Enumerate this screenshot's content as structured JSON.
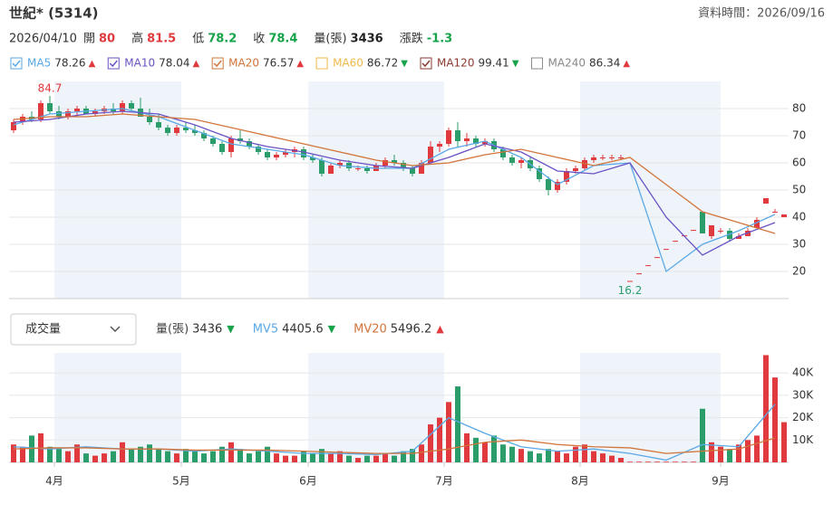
{
  "header": {
    "title": "世紀* (5314)",
    "timestamp": "資料時間：2026/09/16",
    "date": "2026/04/10",
    "quote": [
      {
        "label": "開",
        "value": 80,
        "color": "#e0393e"
      },
      {
        "label": "高",
        "value": 81.5,
        "color": "#e0393e"
      },
      {
        "label": "低",
        "value": 78.2,
        "color": "#16a34a"
      },
      {
        "label": "收",
        "value": 78.4,
        "color": "#16a34a"
      },
      {
        "label": "量(張)",
        "value": 3436,
        "color": "#222"
      },
      {
        "label": "漲跌",
        "value": -1.3,
        "color": "#16a34a"
      }
    ]
  },
  "chart_data": [
    {
      "type": "candlestick",
      "xlim": [
        0,
        86
      ],
      "ylim": [
        10,
        90
      ],
      "yticks": [
        20,
        30,
        40,
        50,
        60,
        70,
        80
      ],
      "grid": true,
      "up_color": "#e0393e",
      "down_color": "#2a9d6b",
      "legend": [
        {
          "name": "MA5",
          "value": 78.26,
          "trend": "▲",
          "color": "#5aa9e6",
          "checked": true
        },
        {
          "name": "MA10",
          "value": 78.04,
          "trend": "▲",
          "color": "#6b52c4",
          "checked": true
        },
        {
          "name": "MA20",
          "value": 76.57,
          "trend": "▲",
          "color": "#d2743a",
          "checked": true
        },
        {
          "name": "MA60",
          "value": 86.72,
          "trend": "▼",
          "color": "#f0b94b",
          "checked": false
        },
        {
          "name": "MA120",
          "value": 99.41,
          "trend": "▼",
          "color": "#8b3a2f",
          "checked": true
        },
        {
          "name": "MA240",
          "value": 86.34,
          "trend": "▲",
          "color": "#888888",
          "checked": false
        }
      ],
      "annotations": [
        {
          "label": "84.7",
          "value": 84.7,
          "color": "#e0393e"
        },
        {
          "label": "16.2",
          "value": 16.2,
          "color": "#2a9d6b"
        }
      ],
      "ohlc": [
        [
          72,
          76,
          71,
          75
        ],
        [
          75,
          78,
          74,
          77
        ],
        [
          77,
          79,
          75,
          76
        ],
        [
          76,
          83,
          75,
          82
        ],
        [
          82,
          84.7,
          78,
          79
        ],
        [
          79,
          81,
          76,
          77
        ],
        [
          77,
          80,
          76,
          79
        ],
        [
          79,
          81,
          77,
          80
        ],
        [
          80,
          81,
          78,
          78
        ],
        [
          78,
          80,
          77,
          79
        ],
        [
          79,
          81,
          78,
          80
        ],
        [
          80,
          82,
          78,
          79
        ],
        [
          79,
          83,
          78,
          82
        ],
        [
          82,
          83,
          79,
          80
        ],
        [
          80,
          84,
          77,
          77
        ],
        [
          77,
          80,
          74,
          75
        ],
        [
          75,
          78,
          72,
          73
        ],
        [
          73,
          74,
          70,
          71
        ],
        [
          71,
          74,
          70,
          73
        ],
        [
          73,
          75,
          71,
          72
        ],
        [
          72,
          74,
          70,
          71
        ],
        [
          71,
          72,
          68,
          69
        ],
        [
          69,
          70,
          66,
          67
        ],
        [
          67,
          68,
          63,
          64
        ],
        [
          64,
          70,
          62,
          69
        ],
        [
          69,
          72,
          67,
          68
        ],
        [
          68,
          69,
          65,
          66
        ],
        [
          66,
          67,
          63,
          64
        ],
        [
          64,
          65,
          61,
          62
        ],
        [
          62,
          64,
          61,
          63
        ],
        [
          63,
          65,
          62,
          64
        ],
        [
          64,
          66,
          62,
          65
        ],
        [
          65,
          66,
          61,
          62
        ],
        [
          62,
          63,
          60,
          61
        ],
        [
          61,
          62,
          55,
          56
        ],
        [
          56,
          60,
          56,
          59
        ],
        [
          59,
          61,
          58,
          60
        ],
        [
          60,
          61,
          57,
          58
        ],
        [
          58,
          59,
          57,
          58
        ],
        [
          58,
          59,
          56,
          57
        ],
        [
          57,
          60,
          57,
          59
        ],
        [
          59,
          62,
          58,
          61
        ],
        [
          61,
          63,
          59,
          60
        ],
        [
          60,
          61,
          57,
          58
        ],
        [
          58,
          59,
          55,
          56
        ],
        [
          56,
          61,
          56,
          60
        ],
        [
          60,
          68,
          60,
          66
        ],
        [
          66,
          68,
          64,
          67
        ],
        [
          67,
          73,
          66,
          72
        ],
        [
          72,
          75,
          66,
          68
        ],
        [
          68,
          71,
          66,
          69
        ],
        [
          69,
          70,
          66,
          67
        ],
        [
          67,
          69,
          66,
          68
        ],
        [
          68,
          69,
          64,
          65
        ],
        [
          65,
          66,
          61,
          62
        ],
        [
          62,
          63,
          59,
          60
        ],
        [
          60,
          62,
          58,
          61
        ],
        [
          61,
          62,
          57,
          58
        ],
        [
          58,
          59,
          53,
          54
        ],
        [
          54,
          55,
          48,
          50
        ],
        [
          50,
          54,
          49,
          53
        ],
        [
          53,
          58,
          52,
          57
        ],
        [
          57,
          59,
          56,
          58
        ],
        [
          58,
          62,
          57,
          61
        ],
        [
          61,
          63,
          60,
          62
        ],
        [
          62,
          63,
          61,
          62
        ],
        [
          62,
          63,
          61,
          62
        ],
        [
          62,
          63,
          61,
          62
        ],
        [
          16.2,
          16.5,
          16.2,
          16.5
        ],
        [
          19,
          19.3,
          19,
          19.3
        ],
        [
          22,
          22.3,
          22,
          22.3
        ],
        [
          25,
          25.3,
          25,
          25.3
        ],
        [
          28,
          28.3,
          28,
          28.3
        ],
        [
          31,
          31.3,
          31,
          31.3
        ],
        [
          33,
          33.3,
          33,
          33.3
        ],
        [
          35,
          35.3,
          35,
          35.3
        ],
        [
          42,
          42,
          34,
          34
        ],
        [
          33,
          37,
          32,
          37
        ],
        [
          35,
          36,
          34,
          35
        ],
        [
          35,
          36,
          31,
          32
        ],
        [
          32,
          34,
          32,
          33
        ],
        [
          33,
          36,
          33,
          35
        ],
        [
          36,
          40,
          36,
          39
        ],
        [
          45,
          47,
          45,
          47
        ],
        [
          42,
          43,
          42,
          42
        ],
        [
          40,
          41,
          40,
          41
        ]
      ],
      "series": [
        {
          "name": "MA5",
          "color": "#5aa9e6",
          "x": [
            0,
            4,
            8,
            12,
            16,
            20,
            24,
            28,
            32,
            36,
            40,
            44,
            48,
            52,
            56,
            60,
            64,
            68,
            72,
            76,
            80,
            84
          ],
          "values": [
            74,
            78,
            79,
            80,
            77,
            72,
            67,
            65,
            63,
            59,
            58,
            58,
            65,
            68,
            62,
            52,
            59,
            60,
            20,
            30,
            35,
            41
          ]
        },
        {
          "name": "MA10",
          "color": "#6b52c4",
          "x": [
            0,
            4,
            8,
            12,
            16,
            20,
            24,
            28,
            32,
            36,
            40,
            44,
            48,
            52,
            56,
            60,
            64,
            68,
            72,
            76,
            80,
            84
          ],
          "values": [
            75,
            76,
            78,
            79,
            78,
            74,
            69,
            66,
            64,
            61,
            59,
            58,
            62,
            67,
            64,
            57,
            56,
            60,
            40,
            26,
            33,
            38
          ]
        },
        {
          "name": "MA20",
          "color": "#d2743a",
          "x": [
            0,
            4,
            8,
            12,
            16,
            20,
            24,
            28,
            32,
            36,
            40,
            44,
            48,
            52,
            56,
            60,
            64,
            68,
            72,
            76,
            80,
            84
          ],
          "values": [
            76,
            77,
            77,
            78,
            77,
            76,
            73,
            70,
            67,
            64,
            61,
            59,
            60,
            63,
            65,
            62,
            59,
            62,
            52,
            42,
            38,
            34
          ]
        }
      ]
    },
    {
      "type": "volume",
      "selector": "成交量",
      "xlim": [
        0,
        86
      ],
      "ylim": [
        0,
        49000
      ],
      "yticks": [
        {
          "value": 10000,
          "label": "10K"
        },
        {
          "value": 20000,
          "label": "20K"
        },
        {
          "value": 30000,
          "label": "30K"
        },
        {
          "value": 40000,
          "label": "40K"
        }
      ],
      "xticks": [
        {
          "value": 5,
          "label": "4月"
        },
        {
          "value": 19,
          "label": "5月"
        },
        {
          "value": 33,
          "label": "6月"
        },
        {
          "value": 48,
          "label": "7月"
        },
        {
          "value": 63,
          "label": "8月"
        },
        {
          "value": 78.5,
          "label": "9月"
        }
      ],
      "legend": [
        {
          "name": "量(張)",
          "value": 3436,
          "trend": "▼",
          "color": "#444444"
        },
        {
          "name": "MV5",
          "value": 4405.6,
          "trend": "▼",
          "color": "#5aa9e6"
        },
        {
          "name": "MV20",
          "value": 5496.2,
          "trend": "▲",
          "color": "#d2743a"
        }
      ],
      "values": [
        8000,
        7000,
        12000,
        13000,
        7000,
        6000,
        5000,
        8000,
        4000,
        3000,
        4000,
        5000,
        9000,
        6000,
        7000,
        8000,
        6000,
        5000,
        4000,
        6000,
        5000,
        4000,
        5000,
        7000,
        9000,
        6000,
        4000,
        5000,
        7000,
        4000,
        3000,
        3000,
        5000,
        4000,
        6000,
        4000,
        5000,
        3000,
        2000,
        3000,
        3000,
        4000,
        3000,
        5000,
        6000,
        8000,
        17000,
        20000,
        27000,
        34000,
        13000,
        11000,
        9000,
        12000,
        8000,
        7000,
        6000,
        5000,
        4000,
        6000,
        5000,
        4000,
        7000,
        8000,
        5000,
        4000,
        3000,
        2000,
        300,
        300,
        300,
        300,
        300,
        300,
        300,
        300,
        24000,
        9000,
        7000,
        6000,
        8000,
        10000,
        12000,
        48000,
        38000,
        18000
      ],
      "series": [
        {
          "name": "MV5",
          "color": "#5aa9e6",
          "x": [
            0,
            4,
            8,
            12,
            16,
            20,
            24,
            28,
            32,
            36,
            40,
            44,
            48,
            52,
            56,
            60,
            64,
            68,
            72,
            76,
            80,
            84
          ],
          "values": [
            7000,
            6000,
            7000,
            6000,
            6000,
            5000,
            6000,
            5000,
            4000,
            4000,
            3500,
            5000,
            20000,
            13000,
            7000,
            5000,
            6000,
            4000,
            1000,
            8000,
            7000,
            26000
          ]
        },
        {
          "name": "MV20",
          "color": "#d2743a",
          "x": [
            0,
            4,
            8,
            12,
            16,
            20,
            24,
            28,
            32,
            36,
            40,
            44,
            48,
            52,
            56,
            60,
            64,
            68,
            72,
            76,
            80,
            84
          ],
          "values": [
            6000,
            6500,
            6500,
            6000,
            6000,
            5500,
            5500,
            5500,
            5000,
            4500,
            4000,
            4000,
            6000,
            9000,
            10000,
            8000,
            7000,
            6500,
            4000,
            5000,
            6000,
            11000
          ]
        }
      ]
    }
  ]
}
